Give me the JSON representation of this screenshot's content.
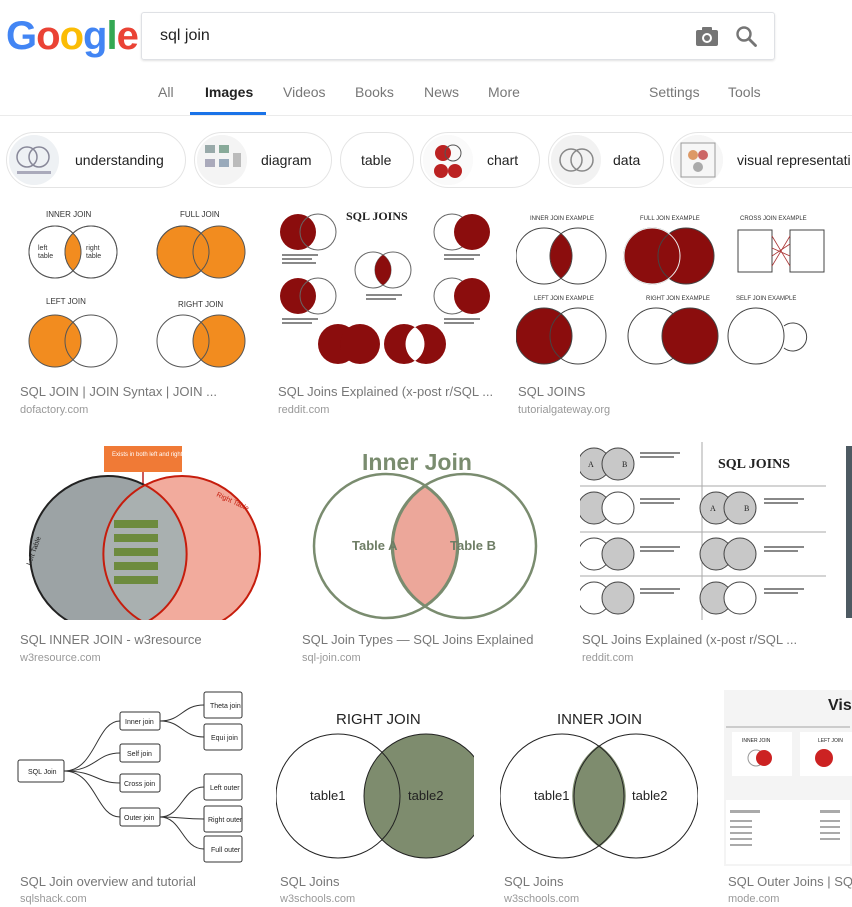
{
  "logo": {
    "letters": [
      "G",
      "o",
      "o",
      "g",
      "l",
      "e"
    ],
    "colors": [
      "#4285f4",
      "#ea4335",
      "#fbbc05",
      "#4285f4",
      "#34a853",
      "#ea4335"
    ]
  },
  "search": {
    "query": "sql join"
  },
  "tabs": [
    {
      "label": "All"
    },
    {
      "label": "Images"
    },
    {
      "label": "Videos"
    },
    {
      "label": "Books"
    },
    {
      "label": "News"
    },
    {
      "label": "More"
    },
    {
      "label": "Settings"
    },
    {
      "label": "Tools"
    }
  ],
  "chips": [
    {
      "label": "understanding"
    },
    {
      "label": "diagram"
    },
    {
      "label": "table"
    },
    {
      "label": "chart"
    },
    {
      "label": "data"
    },
    {
      "label": "visual representati"
    }
  ],
  "results": [
    {
      "caption": "SQL JOIN | JOIN Syntax | JOIN ...",
      "source": "dofactory.com",
      "img": {
        "inner_join": "INNER JOIN",
        "full_join": "FULL JOIN",
        "left_join": "LEFT JOIN",
        "right_join": "RIGHT JOIN",
        "left": "left",
        "table": "table",
        "right": "right"
      }
    },
    {
      "caption": "SQL Joins Explained (x-post r/SQL ...",
      "source": "reddit.com",
      "img": {
        "title": "SQL JOINS",
        "a": "A",
        "b": "B"
      }
    },
    {
      "caption": "SQL JOINS",
      "source": "tutorialgateway.org",
      "img": {
        "t1": "INNER JOIN EXAMPLE",
        "t2": "FULL JOIN EXAMPLE",
        "t3": "CROSS JOIN EXAMPLE",
        "t4": "LEFT JOIN EXAMPLE",
        "t5": "RIGHT JOIN EXAMPLE",
        "t6": "SELF JOIN EXAMPLE"
      }
    },
    {
      "caption": "SQL INNER JOIN - w3resource",
      "source": "w3resource.com",
      "img": {
        "callout": "Exists in both left and right tables",
        "left": "Left Table",
        "right": "Right Table"
      }
    },
    {
      "caption": "SQL Join Types — SQL Joins Explained",
      "source": "sql-join.com",
      "img": {
        "title": "Inner Join",
        "a": "Table A",
        "b": "Table B"
      }
    },
    {
      "caption": "SQL Joins Explained (x-post r/SQL ...",
      "source": "reddit.com",
      "img": {
        "title": "SQL JOINS",
        "a": "A",
        "b": "B"
      }
    },
    {
      "caption": "SQL Join overview and tutorial",
      "source": "sqlshack.com",
      "img": {
        "root": "SQL Join",
        "inner": "Inner join",
        "self": "Self join",
        "cross": "Cross join",
        "outer": "Outer join",
        "theta": "Theta join",
        "equi": "Equi join",
        "lo": "Left outer",
        "ro": "Right outer",
        "fo": "Full outer"
      }
    },
    {
      "caption": "SQL Joins",
      "source": "w3schools.com",
      "img": {
        "title": "RIGHT JOIN",
        "t1": "table1",
        "t2": "table2"
      }
    },
    {
      "caption": "SQL Joins",
      "source": "w3schools.com",
      "img": {
        "title": "INNER JOIN",
        "t1": "table1",
        "t2": "table2"
      }
    },
    {
      "caption": "SQL Outer Joins | SQ",
      "source": "mode.com",
      "img": {
        "title": "Visu",
        "inner": "INNER JOIN",
        "left": "LEFT JOIN"
      }
    }
  ]
}
